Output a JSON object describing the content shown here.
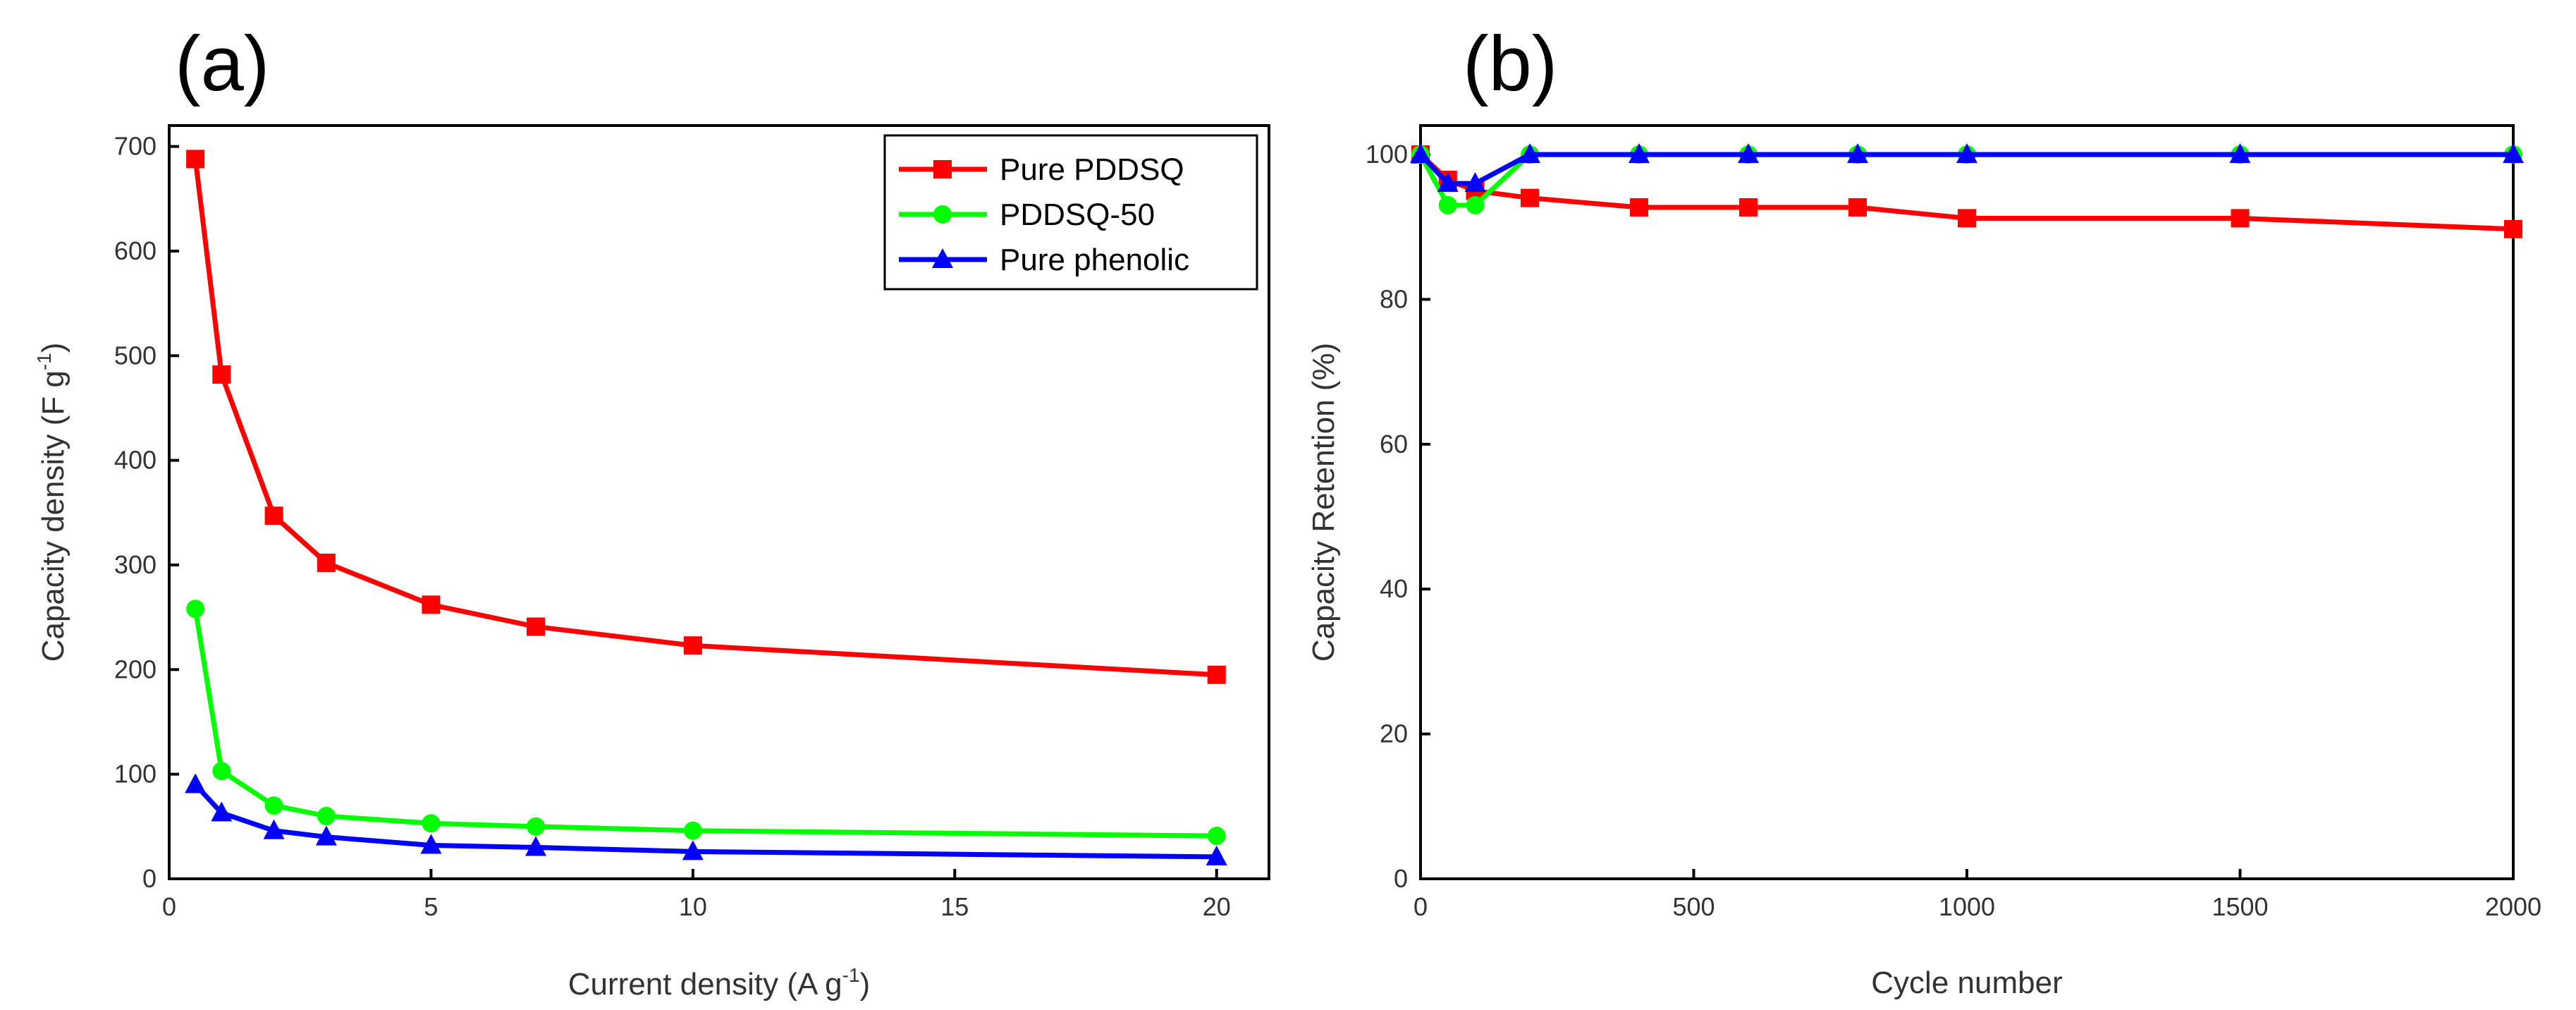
{
  "chart_data": [
    {
      "type": "line",
      "panel_label": "(a)",
      "xlabel": "Current density (A g",
      "xlabel_sup": "-1",
      "xlabel_end": ")",
      "ylabel": "Capacity density (F g",
      "ylabel_sup": "-1",
      "ylabel_end": ")",
      "xlim": [
        0,
        21
      ],
      "ylim": [
        0,
        720
      ],
      "xticks": [
        0,
        5,
        10,
        15,
        20
      ],
      "yticks": [
        0,
        100,
        200,
        300,
        400,
        500,
        600,
        700
      ],
      "legend_position": "top-right",
      "series": [
        {
          "name": "Pure PDDSQ",
          "color": "#ff0000",
          "marker": "square",
          "x": [
            0.5,
            1,
            2,
            3,
            5,
            7,
            10,
            20
          ],
          "y": [
            688,
            482,
            347,
            302,
            262,
            241,
            223,
            195
          ]
        },
        {
          "name": "PDDSQ-50",
          "color": "#00ff00",
          "marker": "circle",
          "x": [
            0.5,
            1,
            2,
            3,
            5,
            7,
            10,
            20
          ],
          "y": [
            258,
            103,
            70,
            60,
            53,
            50,
            46,
            41
          ]
        },
        {
          "name": "Pure phenolic",
          "color": "#0000ff",
          "marker": "triangle",
          "x": [
            0.5,
            1,
            2,
            3,
            5,
            7,
            10,
            20
          ],
          "y": [
            90,
            63,
            46,
            40,
            32,
            30,
            26,
            21
          ]
        }
      ]
    },
    {
      "type": "line",
      "panel_label": "(b)",
      "xlabel": "Cycle number",
      "ylabel": "Capacity Retention (%)",
      "xlim": [
        0,
        2000
      ],
      "ylim": [
        0,
        104
      ],
      "xticks": [
        0,
        500,
        1000,
        1500,
        2000
      ],
      "yticks": [
        0,
        20,
        40,
        60,
        80,
        100
      ],
      "series": [
        {
          "name": "Pure PDDSQ",
          "color": "#ff0000",
          "marker": "square",
          "x": [
            0,
            50,
            100,
            200,
            400,
            600,
            800,
            1000,
            1500,
            2000
          ],
          "y": [
            100,
            96.5,
            95,
            94,
            92.7,
            92.7,
            92.7,
            91.2,
            91.2,
            89.7
          ]
        },
        {
          "name": "PDDSQ-50",
          "color": "#00ff00",
          "marker": "circle",
          "x": [
            0,
            50,
            100,
            200,
            400,
            600,
            800,
            1000,
            1500,
            2000
          ],
          "y": [
            100,
            93,
            93,
            100,
            100,
            100,
            100,
            100,
            100,
            100
          ]
        },
        {
          "name": "Pure phenolic",
          "color": "#0000ff",
          "marker": "triangle",
          "x": [
            0,
            50,
            100,
            200,
            400,
            600,
            800,
            1000,
            1500,
            2000
          ],
          "y": [
            100,
            96,
            96,
            100,
            100,
            100,
            100,
            100,
            100,
            100
          ]
        }
      ]
    }
  ]
}
